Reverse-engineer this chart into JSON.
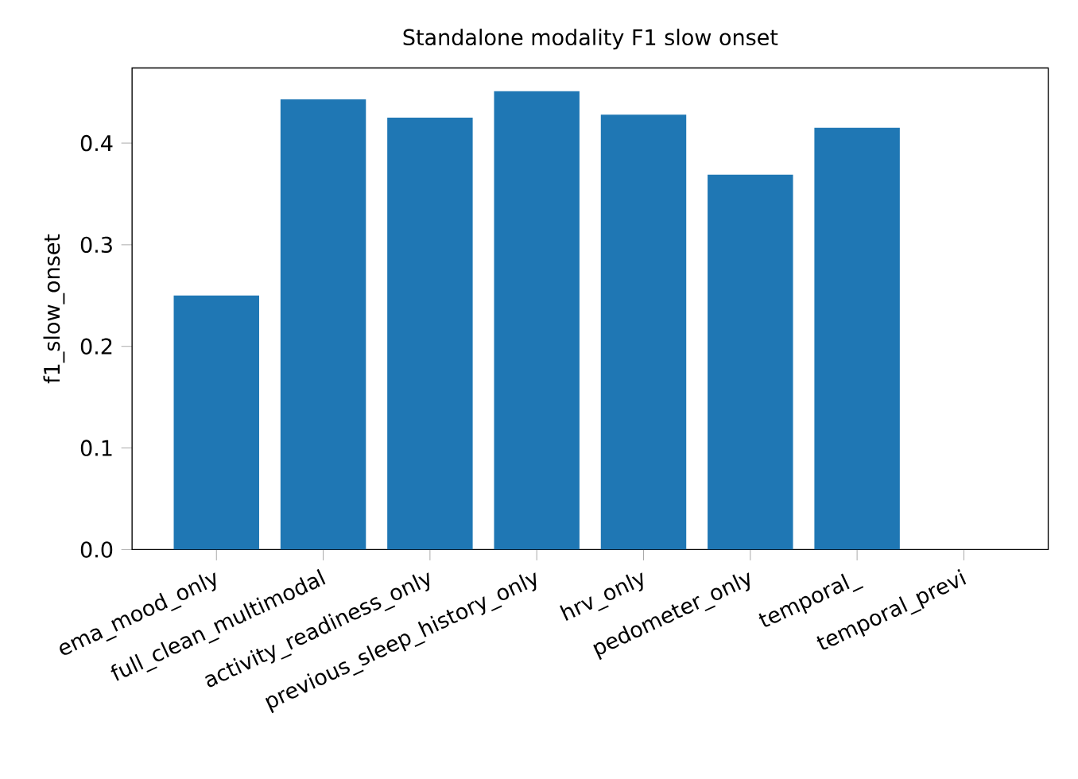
{
  "chart_data": {
    "type": "bar",
    "title": "Standalone modality F1 slow onset",
    "ylabel": "f1_slow_onset",
    "categories": [
      "ema_mood_only",
      "full_clean_multimodal",
      "activity_readiness_only",
      "previous_sleep_history_only",
      "hrv_only",
      "pedometer_only",
      "temporal_",
      "temporal_previ"
    ],
    "values": [
      0.25,
      0.443,
      0.425,
      0.451,
      0.428,
      0.369,
      0.415,
      null
    ],
    "color": "#1f77b4",
    "ylim": [
      0,
      0.474
    ],
    "yticks": [
      {
        "value": 0,
        "label": "0.0"
      },
      0.1,
      0.2,
      0.3,
      0.4
    ]
  }
}
